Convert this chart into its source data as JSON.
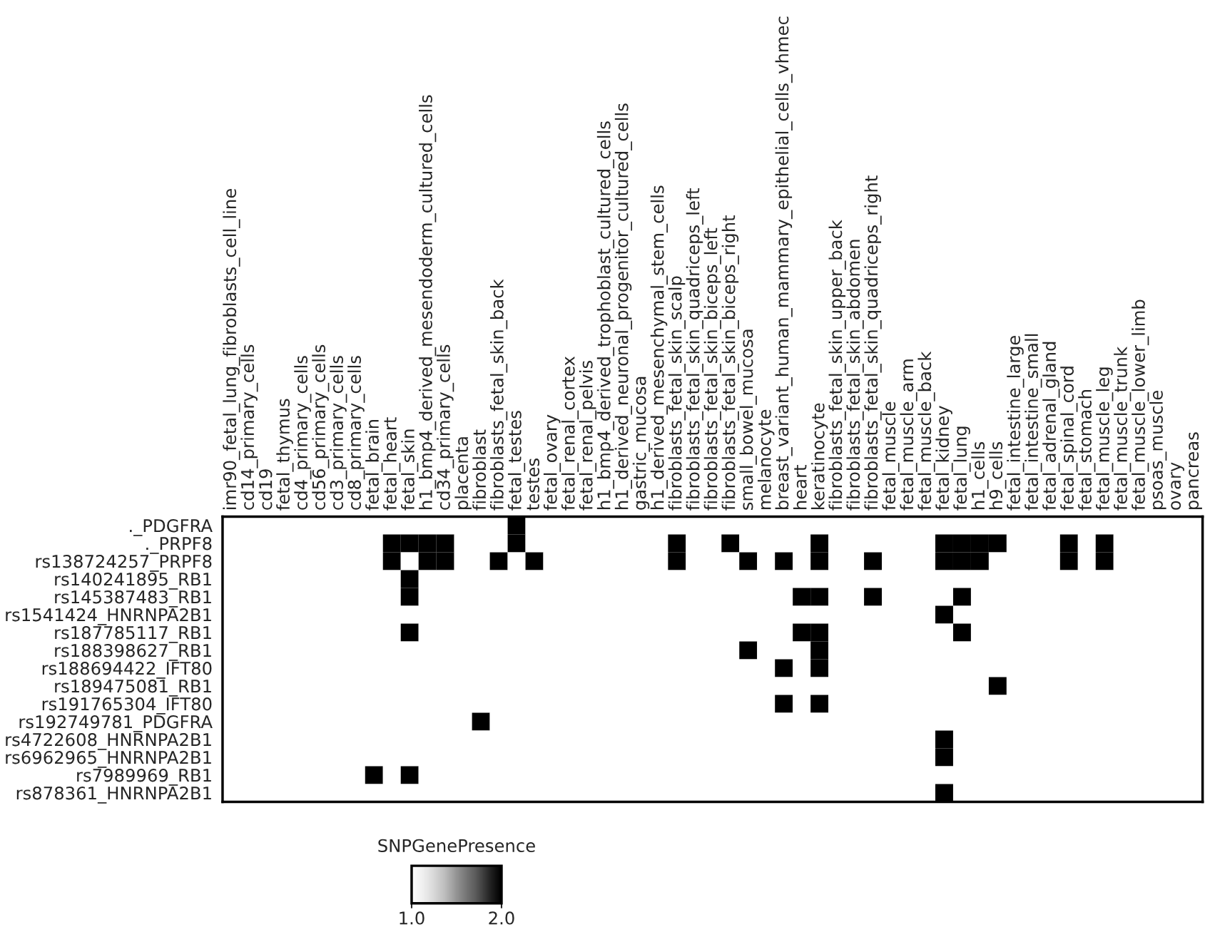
{
  "chart_data": {
    "type": "heatmap",
    "clabel": "SNPGenePresence",
    "categories": [
      "imr90_fetal_lung_fibroblasts_cell_line",
      "cd14_primary_cells",
      "cd19",
      "fetal_thymus",
      "cd4_primary_cells",
      "cd56_primary_cells",
      "cd3_primary_cells",
      "cd8_primary_cells",
      "fetal_brain",
      "fetal_heart",
      "fetal_skin",
      "h1_bmp4_derived_mesendoderm_cultured_cells",
      "cd34_primary_cells",
      "placenta",
      "fibroblast",
      "fibroblasts_fetal_skin_back",
      "fetal_testes",
      "testes",
      "fetal_ovary",
      "fetal_renal_cortex",
      "fetal_renal_pelvis",
      "h1_bmp4_derived_trophoblast_cultured_cells",
      "h1_derived_neuronal_progenitor_cultured_cells",
      "gastric_mucosa",
      "h1_derived_mesenchymal_stem_cells",
      "fibroblasts_fetal_skin_scalp",
      "fibroblasts_fetal_skin_quadriceps_left",
      "fibroblasts_fetal_skin_biceps_left",
      "fibroblasts_fetal_skin_biceps_right",
      "small_bowel_mucosa",
      "melanocyte",
      "breast_variant_human_mammary_epithelial_cells_vhmec",
      "heart",
      "keratinocyte",
      "fibroblasts_fetal_skin_upper_back",
      "fibroblasts_fetal_skin_abdomen",
      "fibroblasts_fetal_skin_quadriceps_right",
      "fetal_muscle",
      "fetal_muscle_arm",
      "fetal_muscle_back",
      "fetal_kidney",
      "fetal_lung",
      "h1_cells",
      "h9_cells",
      "fetal_intestine_large",
      "fetal_intestine_small",
      "fetal_adrenal_gland",
      "fetal_spinal_cord",
      "fetal_stomach",
      "fetal_muscle_leg",
      "fetal_muscle_trunk",
      "fetal_muscle_lower_limb",
      "psoas_muscle",
      "ovary",
      "pancreas"
    ],
    "y_categories": [
      "._PDGFRA",
      "._PRPF8",
      "rs138724257_PRPF8",
      "rs140241895_RB1",
      "rs145387483_RB1",
      "rs1541424_HNRNPA2B1",
      "rs187785117_RB1",
      "rs188398627_RB1",
      "rs188694422_IFT80",
      "rs189475081_RB1",
      "rs191765304_IFT80",
      "rs192749781_PDGFRA",
      "rs4722608_HNRNPA2B1",
      "rs6962965_HNRNPA2B1",
      "rs7989969_RB1",
      "rs878361_HNRNPA2B1"
    ],
    "cells": [
      [
        1,
        1,
        1,
        1,
        1,
        1,
        1,
        1,
        1,
        1,
        1,
        1,
        1,
        1,
        1,
        1,
        2,
        1,
        1,
        1,
        1,
        1,
        1,
        1,
        1,
        1,
        1,
        1,
        1,
        1,
        1,
        1,
        1,
        1,
        1,
        1,
        1,
        1,
        1,
        1,
        1,
        1,
        1,
        1,
        1,
        1,
        1,
        1,
        1,
        1,
        1,
        1,
        1,
        1,
        1
      ],
      [
        1,
        1,
        1,
        1,
        1,
        1,
        1,
        1,
        1,
        2,
        2,
        2,
        2,
        1,
        1,
        1,
        2,
        1,
        1,
        1,
        1,
        1,
        1,
        1,
        1,
        2,
        1,
        1,
        2,
        1,
        1,
        1,
        1,
        2,
        1,
        1,
        1,
        1,
        1,
        1,
        2,
        2,
        2,
        2,
        1,
        1,
        1,
        2,
        1,
        2,
        1,
        1,
        1,
        1,
        1
      ],
      [
        1,
        1,
        1,
        1,
        1,
        1,
        1,
        1,
        1,
        2,
        1,
        2,
        2,
        1,
        1,
        2,
        1,
        2,
        1,
        1,
        1,
        1,
        1,
        1,
        1,
        2,
        1,
        1,
        1,
        2,
        1,
        2,
        1,
        2,
        1,
        1,
        2,
        1,
        1,
        1,
        2,
        2,
        2,
        1,
        1,
        1,
        1,
        2,
        1,
        2,
        1,
        1,
        1,
        1,
        1
      ],
      [
        1,
        1,
        1,
        1,
        1,
        1,
        1,
        1,
        1,
        1,
        2,
        1,
        1,
        1,
        1,
        1,
        1,
        1,
        1,
        1,
        1,
        1,
        1,
        1,
        1,
        1,
        1,
        1,
        1,
        1,
        1,
        1,
        1,
        1,
        1,
        1,
        1,
        1,
        1,
        1,
        1,
        1,
        1,
        1,
        1,
        1,
        1,
        1,
        1,
        1,
        1,
        1,
        1,
        1,
        1
      ],
      [
        1,
        1,
        1,
        1,
        1,
        1,
        1,
        1,
        1,
        1,
        2,
        1,
        1,
        1,
        1,
        1,
        1,
        1,
        1,
        1,
        1,
        1,
        1,
        1,
        1,
        1,
        1,
        1,
        1,
        1,
        1,
        1,
        2,
        2,
        1,
        1,
        2,
        1,
        1,
        1,
        1,
        2,
        1,
        1,
        1,
        1,
        1,
        1,
        1,
        1,
        1,
        1,
        1,
        1,
        1
      ],
      [
        1,
        1,
        1,
        1,
        1,
        1,
        1,
        1,
        1,
        1,
        1,
        1,
        1,
        1,
        1,
        1,
        1,
        1,
        1,
        1,
        1,
        1,
        1,
        1,
        1,
        1,
        1,
        1,
        1,
        1,
        1,
        1,
        1,
        1,
        1,
        1,
        1,
        1,
        1,
        1,
        2,
        1,
        1,
        1,
        1,
        1,
        1,
        1,
        1,
        1,
        1,
        1,
        1,
        1,
        1
      ],
      [
        1,
        1,
        1,
        1,
        1,
        1,
        1,
        1,
        1,
        1,
        2,
        1,
        1,
        1,
        1,
        1,
        1,
        1,
        1,
        1,
        1,
        1,
        1,
        1,
        1,
        1,
        1,
        1,
        1,
        1,
        1,
        1,
        2,
        2,
        1,
        1,
        1,
        1,
        1,
        1,
        1,
        2,
        1,
        1,
        1,
        1,
        1,
        1,
        1,
        1,
        1,
        1,
        1,
        1,
        1
      ],
      [
        1,
        1,
        1,
        1,
        1,
        1,
        1,
        1,
        1,
        1,
        1,
        1,
        1,
        1,
        1,
        1,
        1,
        1,
        1,
        1,
        1,
        1,
        1,
        1,
        1,
        1,
        1,
        1,
        1,
        2,
        1,
        1,
        1,
        2,
        1,
        1,
        1,
        1,
        1,
        1,
        1,
        1,
        1,
        1,
        1,
        1,
        1,
        1,
        1,
        1,
        1,
        1,
        1,
        1,
        1
      ],
      [
        1,
        1,
        1,
        1,
        1,
        1,
        1,
        1,
        1,
        1,
        1,
        1,
        1,
        1,
        1,
        1,
        1,
        1,
        1,
        1,
        1,
        1,
        1,
        1,
        1,
        1,
        1,
        1,
        1,
        1,
        1,
        2,
        1,
        2,
        1,
        1,
        1,
        1,
        1,
        1,
        1,
        1,
        1,
        1,
        1,
        1,
        1,
        1,
        1,
        1,
        1,
        1,
        1,
        1,
        1
      ],
      [
        1,
        1,
        1,
        1,
        1,
        1,
        1,
        1,
        1,
        1,
        1,
        1,
        1,
        1,
        1,
        1,
        1,
        1,
        1,
        1,
        1,
        1,
        1,
        1,
        1,
        1,
        1,
        1,
        1,
        1,
        1,
        1,
        1,
        1,
        1,
        1,
        1,
        1,
        1,
        1,
        1,
        1,
        1,
        2,
        1,
        1,
        1,
        1,
        1,
        1,
        1,
        1,
        1,
        1,
        1
      ],
      [
        1,
        1,
        1,
        1,
        1,
        1,
        1,
        1,
        1,
        1,
        1,
        1,
        1,
        1,
        1,
        1,
        1,
        1,
        1,
        1,
        1,
        1,
        1,
        1,
        1,
        1,
        1,
        1,
        1,
        1,
        1,
        2,
        1,
        2,
        1,
        1,
        1,
        1,
        1,
        1,
        1,
        1,
        1,
        1,
        1,
        1,
        1,
        1,
        1,
        1,
        1,
        1,
        1,
        1,
        1
      ],
      [
        1,
        1,
        1,
        1,
        1,
        1,
        1,
        1,
        1,
        1,
        1,
        1,
        1,
        1,
        2,
        1,
        1,
        1,
        1,
        1,
        1,
        1,
        1,
        1,
        1,
        1,
        1,
        1,
        1,
        1,
        1,
        1,
        1,
        1,
        1,
        1,
        1,
        1,
        1,
        1,
        1,
        1,
        1,
        1,
        1,
        1,
        1,
        1,
        1,
        1,
        1,
        1,
        1,
        1,
        1
      ],
      [
        1,
        1,
        1,
        1,
        1,
        1,
        1,
        1,
        1,
        1,
        1,
        1,
        1,
        1,
        1,
        1,
        1,
        1,
        1,
        1,
        1,
        1,
        1,
        1,
        1,
        1,
        1,
        1,
        1,
        1,
        1,
        1,
        1,
        1,
        1,
        1,
        1,
        1,
        1,
        1,
        2,
        1,
        1,
        1,
        1,
        1,
        1,
        1,
        1,
        1,
        1,
        1,
        1,
        1,
        1
      ],
      [
        1,
        1,
        1,
        1,
        1,
        1,
        1,
        1,
        1,
        1,
        1,
        1,
        1,
        1,
        1,
        1,
        1,
        1,
        1,
        1,
        1,
        1,
        1,
        1,
        1,
        1,
        1,
        1,
        1,
        1,
        1,
        1,
        1,
        1,
        1,
        1,
        1,
        1,
        1,
        1,
        2,
        1,
        1,
        1,
        1,
        1,
        1,
        1,
        1,
        1,
        1,
        1,
        1,
        1,
        1
      ],
      [
        1,
        1,
        1,
        1,
        1,
        1,
        1,
        1,
        2,
        1,
        2,
        1,
        1,
        1,
        1,
        1,
        1,
        1,
        1,
        1,
        1,
        1,
        1,
        1,
        1,
        1,
        1,
        1,
        1,
        1,
        1,
        1,
        1,
        1,
        1,
        1,
        1,
        1,
        1,
        1,
        1,
        1,
        1,
        1,
        1,
        1,
        1,
        1,
        1,
        1,
        1,
        1,
        1,
        1,
        1
      ],
      [
        1,
        1,
        1,
        1,
        1,
        1,
        1,
        1,
        1,
        1,
        1,
        1,
        1,
        1,
        1,
        1,
        1,
        1,
        1,
        1,
        1,
        1,
        1,
        1,
        1,
        1,
        1,
        1,
        1,
        1,
        1,
        1,
        1,
        1,
        1,
        1,
        1,
        1,
        1,
        1,
        2,
        1,
        1,
        1,
        1,
        1,
        1,
        1,
        1,
        1,
        1,
        1,
        1,
        1,
        1
      ]
    ],
    "clim": [
      1,
      2
    ],
    "cticks": [
      {
        "value": 1,
        "label": "1.0"
      },
      {
        "value": 2,
        "label": "2.0"
      }
    ]
  }
}
